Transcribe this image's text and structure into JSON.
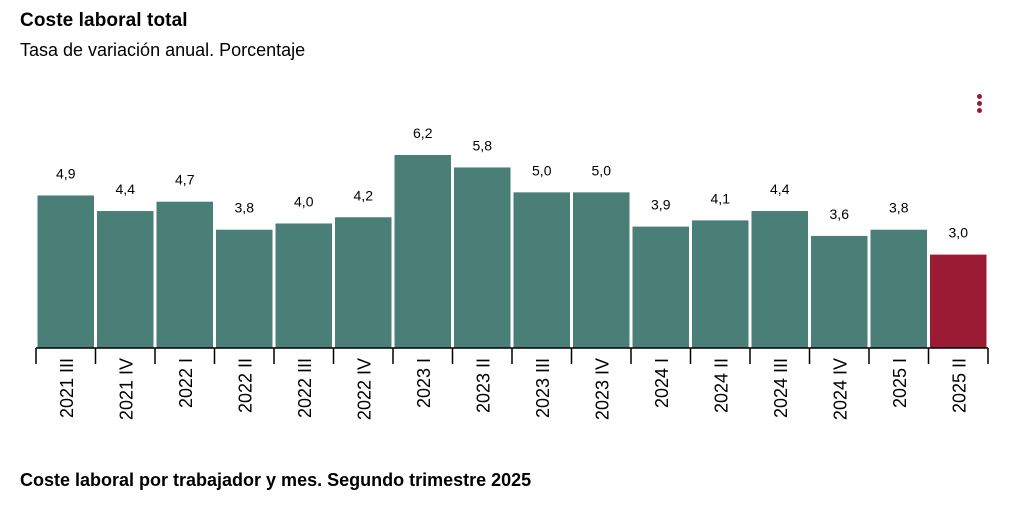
{
  "header": {
    "title": "Coste laboral total",
    "subtitle": "Tasa de variación anual. Porcentaje"
  },
  "menu": {
    "icon": "kebab-menu-icon",
    "color": "#9b1b35"
  },
  "footer": {
    "title": "Coste laboral por trabajador y mes. Segundo trimestre 2025"
  },
  "chart_data": {
    "type": "bar",
    "title": "Coste laboral total",
    "subtitle": "Tasa de variación anual. Porcentaje",
    "categories": [
      "2021 III",
      "2021 IV",
      "2022 I",
      "2022 II",
      "2022 III",
      "2022 IV",
      "2023 I",
      "2023 II",
      "2023 III",
      "2023 IV",
      "2024 I",
      "2024 II",
      "2024 III",
      "2024 IV",
      "2025 I",
      "2025 II"
    ],
    "values": [
      4.9,
      4.4,
      4.7,
      3.8,
      4.0,
      4.2,
      6.2,
      5.8,
      5.0,
      5.0,
      3.9,
      4.1,
      4.4,
      3.6,
      3.8,
      3.0
    ],
    "value_labels": [
      "4,9",
      "4,4",
      "4,7",
      "3,8",
      "4,0",
      "4,2",
      "6,2",
      "5,8",
      "5,0",
      "5,0",
      "3,9",
      "4,1",
      "4,4",
      "3,6",
      "3,8",
      "3,0"
    ],
    "bar_color": "#4a7f77",
    "highlight_color": "#9b1b35",
    "highlight_index": 15,
    "ylim": [
      0,
      6.2
    ],
    "grid": false,
    "xlabel": "",
    "ylabel": ""
  }
}
